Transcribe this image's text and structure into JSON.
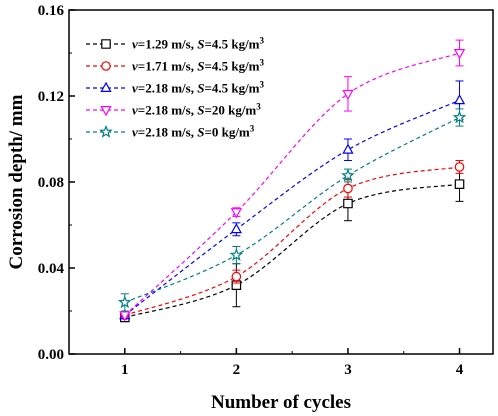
{
  "chart_data": {
    "type": "line",
    "title": "",
    "xlabel": "Number of cycles",
    "ylabel": "Corrosion depth/ mm",
    "x": [
      1,
      2,
      3,
      4
    ],
    "xlim": [
      0.5,
      4.3
    ],
    "ylim": [
      0,
      0.16
    ],
    "xticks": [
      "1",
      "2",
      "3",
      "4"
    ],
    "yticks": [
      "0.00",
      "0.04",
      "0.08",
      "0.12",
      "0.16"
    ],
    "grid": false,
    "legend_position": "top-left",
    "series": [
      {
        "name": "v=1.29 m/s, S=4.5 kg/m3",
        "legend": {
          "v": "v",
          "v_val": "=1.29 m/s, ",
          "s": "S",
          "s_val": "=4.5 kg/m",
          "sup": "3"
        },
        "color": "#000000",
        "marker": "square",
        "values": [
          0.017,
          0.032,
          0.07,
          0.079
        ],
        "errors": [
          0.001,
          0.01,
          0.008,
          0.008
        ]
      },
      {
        "name": "v=1.71 m/s, S=4.5 kg/m3",
        "legend": {
          "v": "v",
          "v_val": "=1.71 m/s, ",
          "s": "S",
          "s_val": "=4.5 kg/m",
          "sup": "3"
        },
        "color": "#ff0000",
        "marker": "circle",
        "values": [
          0.018,
          0.036,
          0.077,
          0.087
        ],
        "errors": [
          0.001,
          0.003,
          0.004,
          0.003
        ]
      },
      {
        "name": "v=2.18 m/s, S=4.5 kg/m3",
        "legend": {
          "v": "v",
          "v_val": "=2.18 m/s, ",
          "s": "S",
          "s_val": "=4.5 kg/m",
          "sup": "3"
        },
        "color": "#0000ff",
        "marker": "triangle-up",
        "values": [
          0.018,
          0.058,
          0.095,
          0.118
        ],
        "errors": [
          0.001,
          0.003,
          0.005,
          0.009
        ]
      },
      {
        "name": "v=2.18 m/s, S=20 kg/m3",
        "legend": {
          "v": "v",
          "v_val": "=2.18 m/s, ",
          "s": "S",
          "s_val": "=20 kg/m",
          "sup": "3"
        },
        "color": "#ff00ff",
        "marker": "triangle-down",
        "values": [
          0.018,
          0.066,
          0.121,
          0.14
        ],
        "errors": [
          0.001,
          0.002,
          0.008,
          0.006
        ]
      },
      {
        "name": "v=2.18 m/s, S=0 kg/m3",
        "legend": {
          "v": "v",
          "v_val": "=2.18 m/s, ",
          "s": "S",
          "s_val": "=0 kg/m",
          "sup": "3"
        },
        "color": "#008080",
        "marker": "star",
        "values": [
          0.024,
          0.046,
          0.083,
          0.11
        ],
        "errors": [
          0.004,
          0.004,
          0.003,
          0.004
        ]
      }
    ]
  }
}
